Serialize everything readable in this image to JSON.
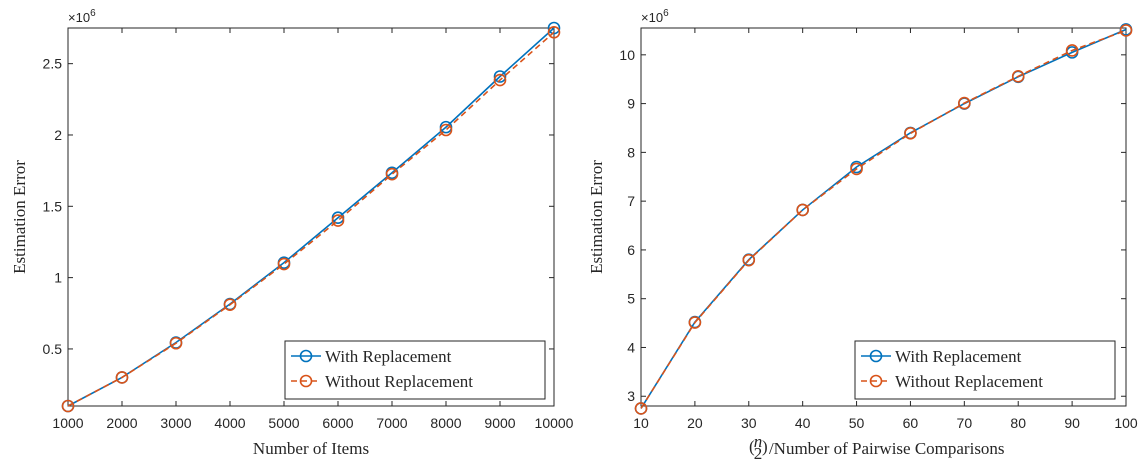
{
  "chart_data": [
    {
      "type": "line",
      "xlabel": "Number of Items",
      "ylabel": "Estimation Error",
      "y_exponent": "×10^6",
      "xlim": [
        1000,
        10000
      ],
      "ylim": [
        0.1,
        2.75
      ],
      "xticks": [
        1000,
        2000,
        3000,
        4000,
        5000,
        6000,
        7000,
        8000,
        9000,
        10000
      ],
      "yticks": [
        0.5,
        1,
        1.5,
        2,
        2.5
      ],
      "grid": false,
      "legend_position": "bottom-right",
      "x": [
        1000,
        2000,
        3000,
        4000,
        5000,
        6000,
        7000,
        8000,
        9000,
        10000
      ],
      "series": [
        {
          "name": "With Replacement",
          "color": "#0072BD",
          "line_style": "solid",
          "marker": "circle",
          "values": [
            0.1,
            0.3,
            0.545,
            0.815,
            1.105,
            1.42,
            1.735,
            2.055,
            2.41,
            2.75
          ]
        },
        {
          "name": "Without Replacement",
          "color": "#D95319",
          "line_style": "dashed",
          "marker": "circle",
          "values": [
            0.1,
            0.3,
            0.54,
            0.81,
            1.095,
            1.4,
            1.725,
            2.035,
            2.385,
            2.72
          ]
        }
      ]
    },
    {
      "type": "line",
      "xlabel_prefix_top": "n",
      "xlabel_prefix_bottom": "2",
      "xlabel": "/Number of Pairwise Comparisons",
      "ylabel": "Estimation Error",
      "y_exponent": "×10^6",
      "xlim": [
        10,
        100
      ],
      "ylim": [
        2.8,
        10.55
      ],
      "xticks": [
        10,
        20,
        30,
        40,
        50,
        60,
        70,
        80,
        90,
        100
      ],
      "yticks": [
        3,
        4,
        5,
        6,
        7,
        8,
        9,
        10
      ],
      "grid": false,
      "legend_position": "bottom-right",
      "x": [
        10,
        20,
        30,
        40,
        50,
        60,
        70,
        80,
        90,
        100
      ],
      "series": [
        {
          "name": "With Replacement",
          "color": "#0072BD",
          "line_style": "solid",
          "marker": "circle",
          "values": [
            2.75,
            4.52,
            5.8,
            6.82,
            7.7,
            8.4,
            9.0,
            9.55,
            10.05,
            10.52
          ]
        },
        {
          "name": "Without Replacement",
          "color": "#D95319",
          "line_style": "dashed",
          "marker": "circle",
          "values": [
            2.75,
            4.51,
            5.79,
            6.82,
            7.66,
            8.39,
            9.01,
            9.56,
            10.09,
            10.5
          ]
        }
      ]
    }
  ]
}
